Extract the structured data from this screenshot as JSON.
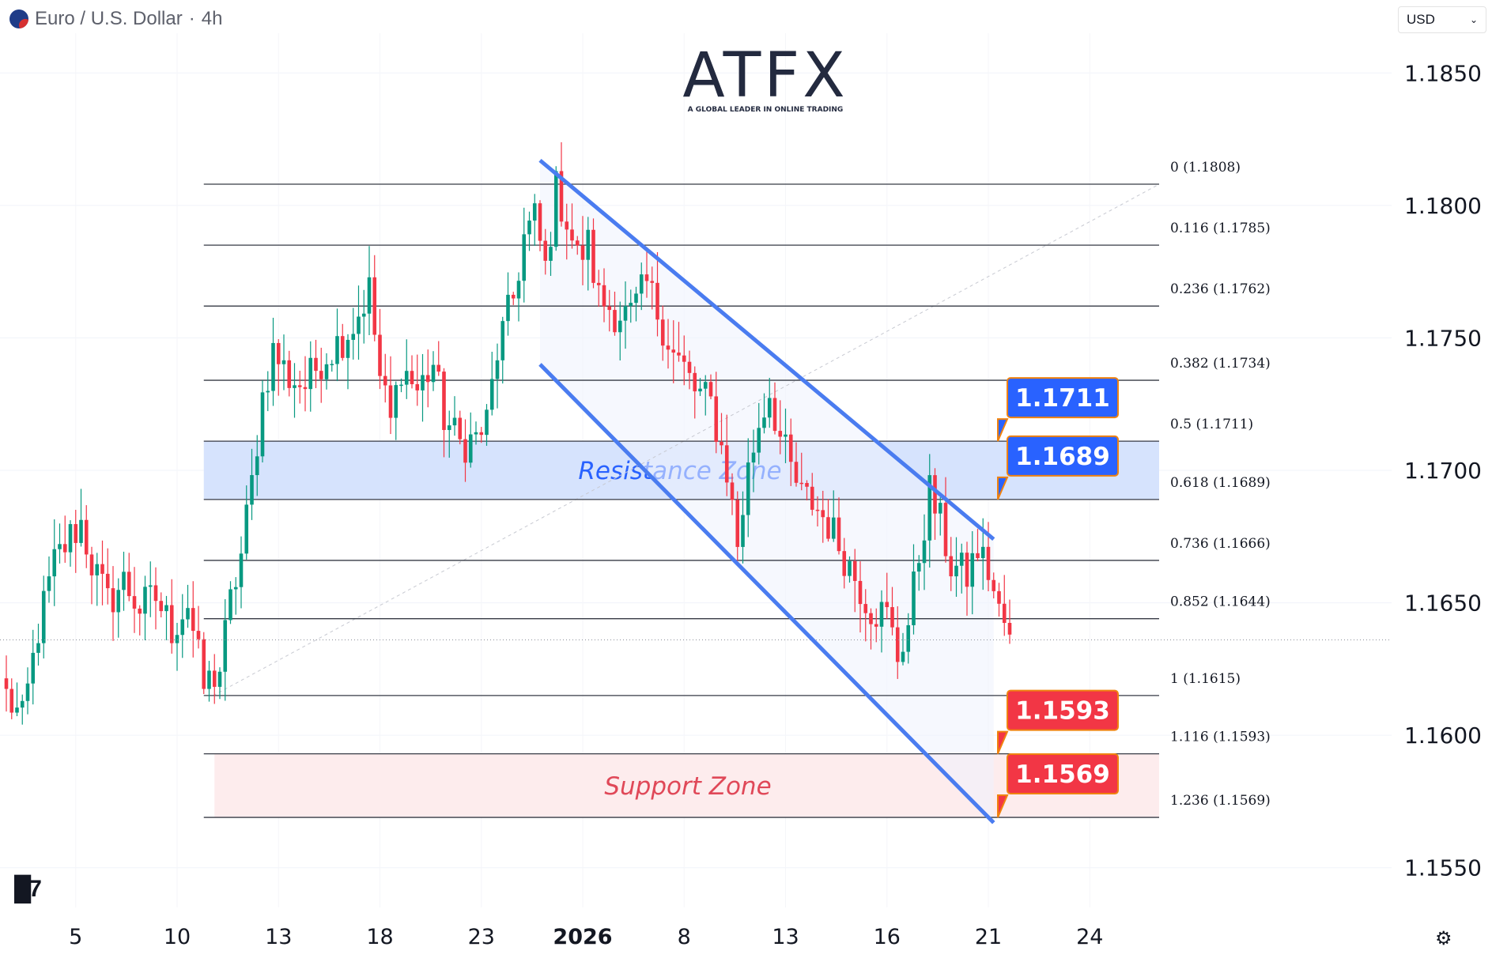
{
  "header": {
    "symbol": "Euro / U.S. Dollar",
    "separator": "·",
    "timeframe": "4h"
  },
  "currency_select": {
    "value": "USD"
  },
  "watermark": {
    "brand": "ATFX",
    "tagline": "A GLOBAL LEADER IN ONLINE TRADING"
  },
  "colors": {
    "up": "#089981",
    "down": "#f23645",
    "channel": "#4a7cf0",
    "resistance_fill": "#d6e3fd",
    "support_fill": "#fdeced",
    "blue_label": "#2962ff",
    "red_label": "#f23645",
    "callout_border": "#f0820f"
  },
  "icons": {
    "settings": "gear-icon",
    "logo": "tradingview-logo-icon",
    "flag": "eur-usd-flag-icon"
  },
  "chart_data": {
    "type": "candlestick",
    "instrument": "Euro / U.S. Dollar",
    "interval": "4h",
    "ylim": [
      1.1535,
      1.1865
    ],
    "y_ticks": [
      "1.1850",
      "1.1800",
      "1.1750",
      "1.1700",
      "1.1650",
      "1.1600",
      "1.1550"
    ],
    "x_ticks": [
      {
        "label": "5",
        "bar": 13
      },
      {
        "label": "10",
        "bar": 32
      },
      {
        "label": "13",
        "bar": 51
      },
      {
        "label": "18",
        "bar": 70
      },
      {
        "label": "23",
        "bar": 89
      },
      {
        "label": "2026",
        "bar": 108
      },
      {
        "label": "8",
        "bar": 127
      },
      {
        "label": "13",
        "bar": 146
      },
      {
        "label": "16",
        "bar": 165
      },
      {
        "label": "21",
        "bar": 184
      },
      {
        "label": "24",
        "bar": 203
      }
    ],
    "current_price": 1.1636,
    "fibonacci": {
      "start_bar": 37,
      "end_bar": 216,
      "levels": [
        {
          "ratio": "0",
          "price": 1.1808,
          "label": "0 (1.1808)"
        },
        {
          "ratio": "0.116",
          "price": 1.1785,
          "label": "0.116 (1.1785)"
        },
        {
          "ratio": "0.236",
          "price": 1.1762,
          "label": "0.236 (1.1762)"
        },
        {
          "ratio": "0.382",
          "price": 1.1734,
          "label": "0.382 (1.1734)"
        },
        {
          "ratio": "0.5",
          "price": 1.1711,
          "label": "0.5 (1.1711)"
        },
        {
          "ratio": "0.618",
          "price": 1.1689,
          "label": "0.618 (1.1689)"
        },
        {
          "ratio": "0.736",
          "price": 1.1666,
          "label": "0.736 (1.1666)"
        },
        {
          "ratio": "0.852",
          "price": 1.1644,
          "label": "0.852 (1.1644)"
        },
        {
          "ratio": "1",
          "price": 1.1615,
          "label": "1 (1.1615)"
        },
        {
          "ratio": "1.116",
          "price": 1.1593,
          "label": "1.116 (1.1593)"
        },
        {
          "ratio": "1.236",
          "price": 1.1569,
          "label": "1.236 (1.1569)"
        }
      ]
    },
    "zones": [
      {
        "name": "Resistance Zone",
        "top": 1.1711,
        "bottom": 1.1689,
        "bar_start": 37,
        "bar_end": 216
      },
      {
        "name": "Support Zone",
        "top": 1.1593,
        "bottom": 1.1569,
        "bar_start": 39,
        "bar_end": 216
      }
    ],
    "channel": {
      "upper": [
        {
          "bar": 100,
          "price": 1.1817
        },
        {
          "bar": 185,
          "price": 1.1674
        }
      ],
      "lower": [
        {
          "bar": 100,
          "price": 1.174
        },
        {
          "bar": 185,
          "price": 1.1567
        }
      ]
    },
    "price_labels": [
      {
        "text": "1.1711",
        "price": 1.1711,
        "color": "blue"
      },
      {
        "text": "1.1689",
        "price": 1.1689,
        "color": "blue"
      },
      {
        "text": "1.1593",
        "price": 1.1593,
        "color": "red"
      },
      {
        "text": "1.1569",
        "price": 1.1569,
        "color": "red"
      }
    ],
    "waypoints": [
      [
        0,
        1.1615
      ],
      [
        3,
        1.1605
      ],
      [
        6,
        1.164
      ],
      [
        9,
        1.1665
      ],
      [
        12,
        1.1675
      ],
      [
        14,
        1.168
      ],
      [
        16,
        1.1665
      ],
      [
        19,
        1.165
      ],
      [
        22,
        1.1658
      ],
      [
        25,
        1.1648
      ],
      [
        28,
        1.1652
      ],
      [
        31,
        1.164
      ],
      [
        34,
        1.165
      ],
      [
        37,
        1.1618
      ],
      [
        40,
        1.1625
      ],
      [
        42,
        1.165
      ],
      [
        44,
        1.1668
      ],
      [
        46,
        1.1695
      ],
      [
        48,
        1.1728
      ],
      [
        50,
        1.1745
      ],
      [
        53,
        1.1735
      ],
      [
        56,
        1.1732
      ],
      [
        59,
        1.1742
      ],
      [
        62,
        1.1748
      ],
      [
        65,
        1.1755
      ],
      [
        68,
        1.1768
      ],
      [
        70,
        1.1735
      ],
      [
        72,
        1.1718
      ],
      [
        74,
        1.174
      ],
      [
        77,
        1.173
      ],
      [
        80,
        1.174
      ],
      [
        82,
        1.172
      ],
      [
        85,
        1.171
      ],
      [
        88,
        1.1712
      ],
      [
        90,
        1.1718
      ],
      [
        92,
        1.1745
      ],
      [
        95,
        1.1765
      ],
      [
        97,
        1.1788
      ],
      [
        99,
        1.1795
      ],
      [
        101,
        1.1776
      ],
      [
        103,
        1.1806
      ],
      [
        105,
        1.1795
      ],
      [
        107,
        1.178
      ],
      [
        109,
        1.1785
      ],
      [
        111,
        1.1765
      ],
      [
        114,
        1.176
      ],
      [
        117,
        1.1758
      ],
      [
        120,
        1.177
      ],
      [
        123,
        1.1755
      ],
      [
        125,
        1.1744
      ],
      [
        127,
        1.1738
      ],
      [
        129,
        1.173
      ],
      [
        132,
        1.1725
      ],
      [
        135,
        1.17
      ],
      [
        137,
        1.1672
      ],
      [
        139,
        1.17
      ],
      [
        141,
        1.1718
      ],
      [
        143,
        1.173
      ],
      [
        145,
        1.1712
      ],
      [
        147,
        1.17
      ],
      [
        149,
        1.169
      ],
      [
        151,
        1.1688
      ],
      [
        154,
        1.168
      ],
      [
        157,
        1.1668
      ],
      [
        159,
        1.166
      ],
      [
        162,
        1.1648
      ],
      [
        165,
        1.1645
      ],
      [
        167,
        1.163
      ],
      [
        169,
        1.1642
      ],
      [
        171,
        1.1668
      ],
      [
        173,
        1.1692
      ],
      [
        175,
        1.168
      ],
      [
        177,
        1.1664
      ],
      [
        180,
        1.166
      ],
      [
        182,
        1.167
      ],
      [
        184,
        1.1662
      ],
      [
        186,
        1.1646
      ],
      [
        188,
        1.1638
      ]
    ]
  }
}
